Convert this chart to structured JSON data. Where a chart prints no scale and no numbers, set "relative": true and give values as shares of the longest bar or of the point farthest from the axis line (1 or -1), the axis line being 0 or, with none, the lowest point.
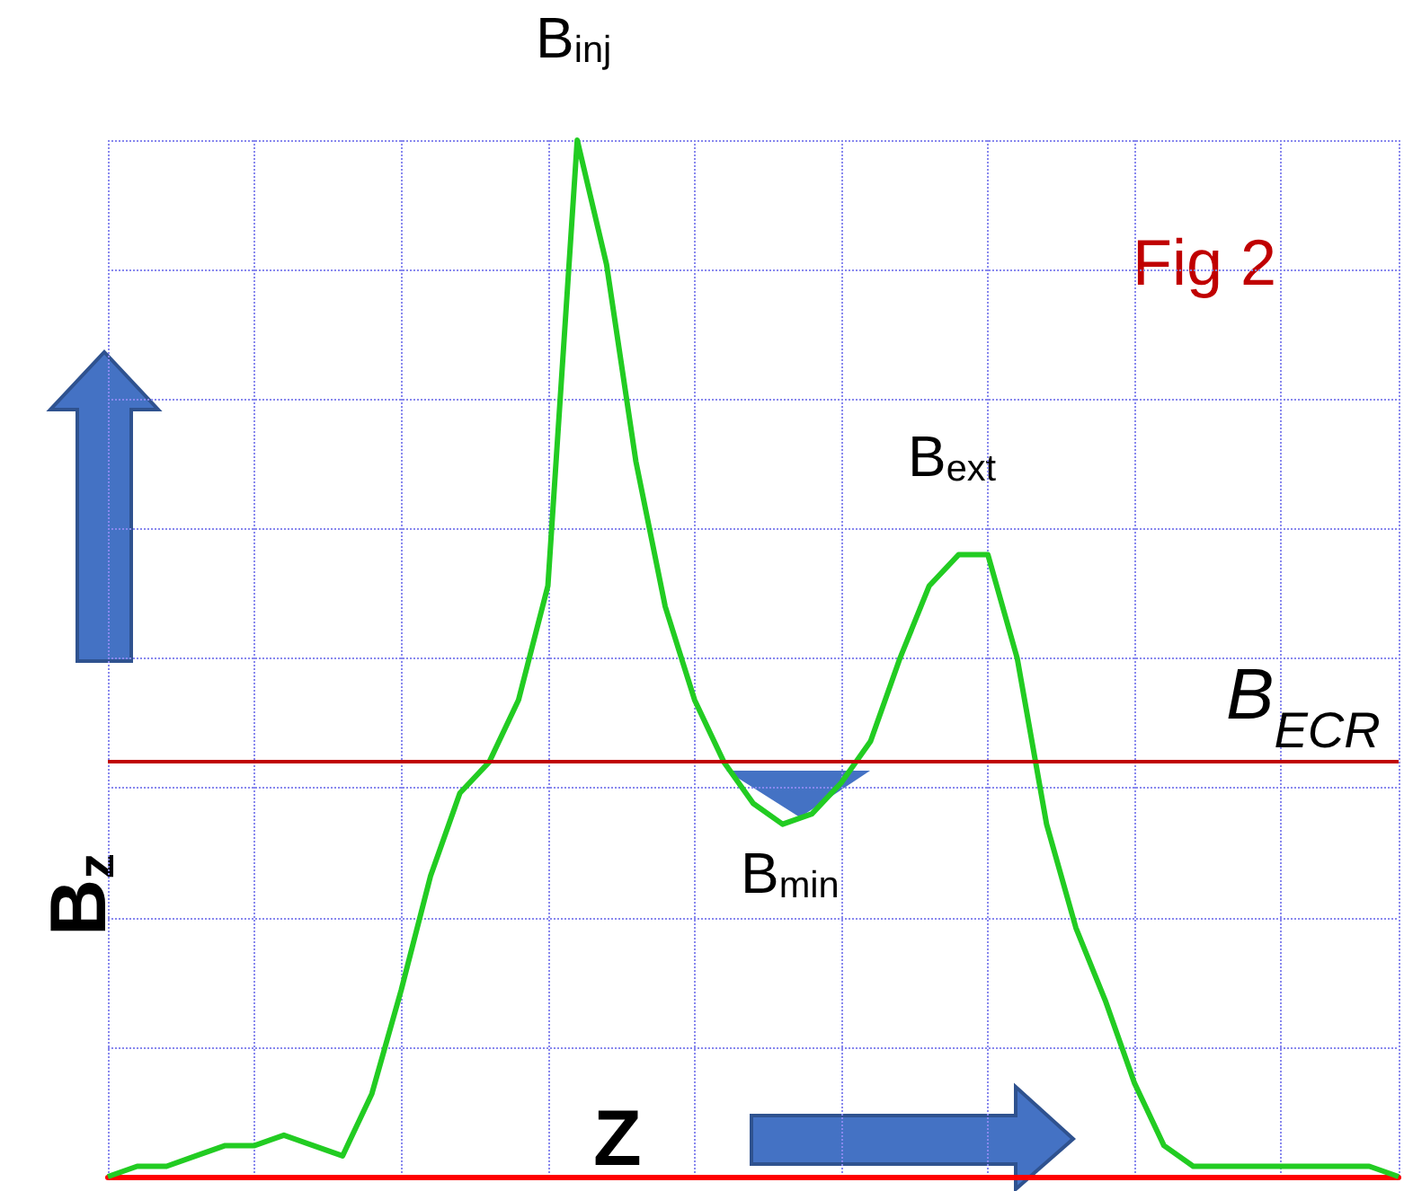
{
  "chart_data": {
    "type": "line",
    "relative": true,
    "xlabel": "Z",
    "ylabel": "B$_{z}$",
    "categories": [
      null,
      null,
      null,
      null,
      null,
      null,
      null,
      null,
      null,
      null,
      null,
      null,
      null,
      null,
      null,
      null,
      null,
      null,
      null,
      null,
      null,
      null,
      null,
      null,
      null,
      null,
      null,
      null,
      null,
      null,
      null,
      null,
      null,
      null,
      null,
      null,
      null,
      null,
      null,
      null,
      null,
      null,
      null,
      null,
      null
    ],
    "series": [
      {
        "color": "#22cc22",
        "values": [
          0.0,
          0.01,
          0.01,
          0.02,
          0.03,
          0.03,
          0.04,
          0.03,
          0.02,
          0.08,
          0.18,
          0.29,
          0.37,
          0.4,
          0.46,
          0.57,
          1,
          0.88,
          0.69,
          0.55,
          0.46,
          0.4,
          0.36,
          0.34,
          0.35,
          0.38,
          0.42,
          0.5,
          0.57,
          0.6,
          0.6,
          0.5,
          0.34,
          0.24,
          0.17,
          0.09,
          0.03,
          0.01,
          0.01,
          0.01,
          0.01,
          0.01,
          0.01,
          0.01,
          0.0
        ]
      }
    ],
    "ref_lines": [
      {
        "axis": "y",
        "value": 0.4,
        "label": "B$_{ECR}$",
        "color": "#c00000"
      }
    ],
    "annotations": [
      "B$_{inj}$",
      "B$_{ext}$",
      "B$_{min}$",
      "Fig 2"
    ],
    "grid": true,
    "marker": "none",
    "line_style": "solid"
  }
}
